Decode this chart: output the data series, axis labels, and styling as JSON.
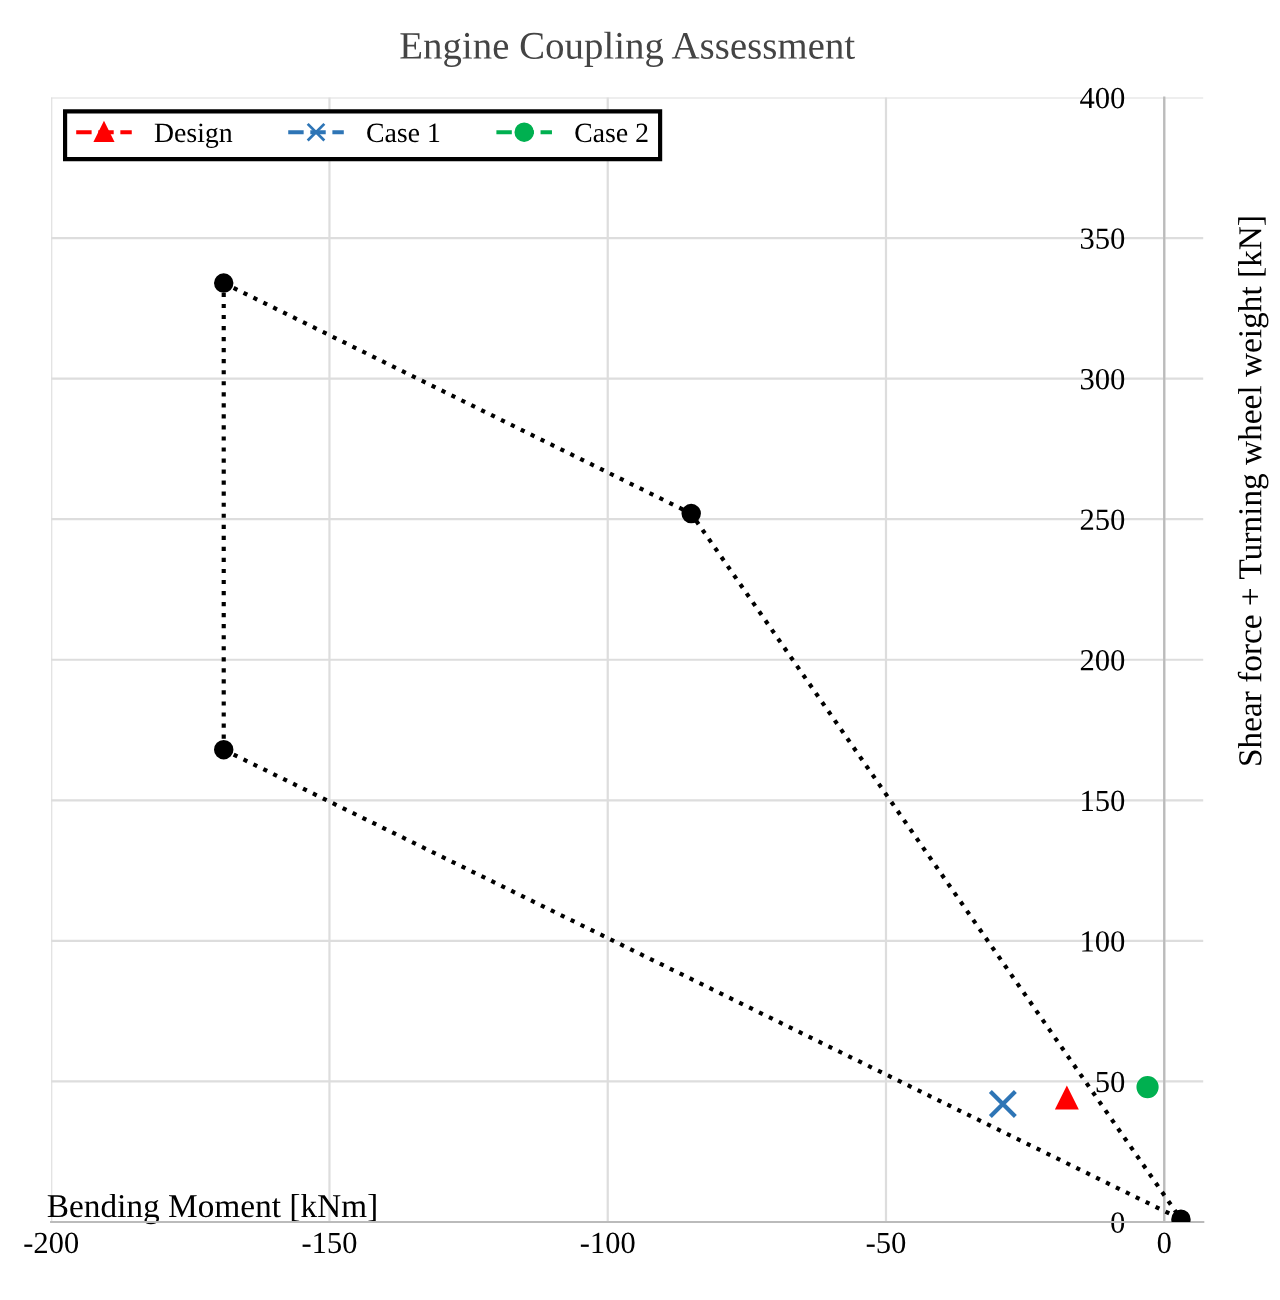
{
  "chart_data": {
    "type": "scatter",
    "title": "Engine Coupling Assessment",
    "xlabel": "Bending Moment [kNm]",
    "ylabel": "Shear force + Turning wheel weight [kN]",
    "xlim": [
      -200,
      7
    ],
    "xticks": [
      -200,
      -150,
      -100,
      -50,
      0
    ],
    "ylim": [
      0,
      400
    ],
    "yticks": [
      0,
      50,
      100,
      150,
      200,
      250,
      300,
      350,
      400
    ],
    "grid": true,
    "legend": "top left",
    "series": [
      {
        "type": "line",
        "color": "#000000",
        "marker": "none",
        "line_style": "dotted",
        "x": [
          -169,
          -85,
          3
        ],
        "values": [
          334,
          252,
          1
        ]
      },
      {
        "type": "line",
        "color": "#000000",
        "marker": "none",
        "line_style": "dotted",
        "x": [
          -169,
          3
        ],
        "values": [
          168,
          1
        ]
      },
      {
        "type": "line",
        "color": "#000000",
        "marker": "none",
        "line_style": "dotted",
        "x": [
          -169,
          -169
        ],
        "values": [
          168,
          334
        ]
      },
      {
        "type": "scatter",
        "color": "#000000",
        "marker": "circle",
        "x": [
          -169,
          -85,
          3,
          -169
        ],
        "values": [
          334,
          252,
          1,
          168
        ]
      },
      {
        "name": "Design",
        "color": "#ff0000",
        "marker": "triangle",
        "line_style": "dashed",
        "x": [
          -17.5
        ],
        "values": [
          44
        ]
      },
      {
        "name": "Case 1",
        "color": "#2e75b6",
        "marker": "cross",
        "line_style": "dashed",
        "x": [
          -29
        ],
        "values": [
          42
        ]
      },
      {
        "name": "Case 2",
        "color": "#00b050",
        "marker": "circle",
        "line_style": "dashed",
        "x": [
          -3
        ],
        "values": [
          48
        ]
      }
    ]
  }
}
